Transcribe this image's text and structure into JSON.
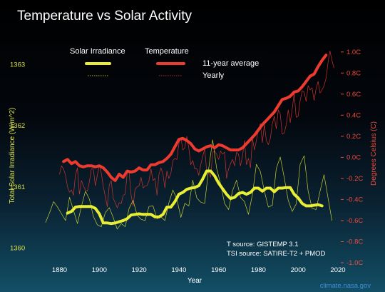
{
  "chart_data": {
    "type": "line",
    "title": "Temperature vs Solar Activity",
    "xlabel": "Year",
    "ylabel_left": "Total Solar Irradiance (W/m^2)",
    "ylabel_right": "Degrees Celsius (C)",
    "xlim": [
      1873,
      2020
    ],
    "x_ticks": [
      1880,
      1900,
      1920,
      1940,
      1960,
      1980,
      2000,
      2020
    ],
    "y_left_lim": [
      1359.76,
      1363.38
    ],
    "y_left_ticks": [
      1360,
      1361,
      1362,
      1363
    ],
    "y_right_lim": [
      -1.0,
      1.1
    ],
    "y_right_ticks": [
      -1.0,
      -0.8,
      -0.6,
      -0.4,
      -0.2,
      0.0,
      0.2,
      0.4,
      0.6,
      0.8,
      1.0
    ],
    "y_right_tick_labels": [
      "-1.0C",
      "-0.8C",
      "-0.6C",
      "-0.4C",
      "-0.2C",
      "0.0C",
      "0.2C",
      "0.4C",
      "0.6C",
      "0.8C",
      "1.0C"
    ],
    "legend": {
      "placement": "top-left",
      "column_headers": [
        "Solar Irradiance",
        "Temperature"
      ],
      "row_labels": [
        "11-year average",
        "Yearly"
      ]
    },
    "annotations": [
      "T source: GISTEMP 3.1",
      "TSI source: SATIRE-T2 + PMOD"
    ],
    "credit": "climate.nasa.gov",
    "colors": {
      "solar": "#e8ee34",
      "temperature": "#ee3b30",
      "left_axis_text": "#d9e04a",
      "right_axis_text": "#ee4a3a"
    },
    "series": [
      {
        "axis": "right",
        "color": "#ee3b30",
        "kind": "11-year average",
        "x": [
          1882,
          1884,
          1886,
          1888,
          1890,
          1892,
          1894,
          1896,
          1898,
          1900,
          1902,
          1904,
          1906,
          1908,
          1910,
          1912,
          1914,
          1916,
          1918,
          1920,
          1922,
          1924,
          1926,
          1928,
          1930,
          1932,
          1934,
          1936,
          1938,
          1940,
          1942,
          1944,
          1946,
          1948,
          1950,
          1952,
          1954,
          1956,
          1958,
          1960,
          1962,
          1964,
          1966,
          1968,
          1970,
          1972,
          1974,
          1976,
          1978,
          1980,
          1982,
          1984,
          1986,
          1988,
          1990,
          1992,
          1994,
          1996,
          1998,
          2000,
          2002,
          2004,
          2006,
          2008,
          2010,
          2012,
          2014
        ],
        "y": [
          -0.04,
          -0.02,
          -0.06,
          -0.04,
          -0.08,
          -0.09,
          -0.08,
          -0.08,
          -0.09,
          -0.08,
          -0.1,
          -0.14,
          -0.19,
          -0.22,
          -0.16,
          -0.19,
          -0.13,
          -0.14,
          -0.13,
          -0.1,
          -0.12,
          -0.12,
          -0.07,
          -0.07,
          -0.05,
          -0.04,
          -0.01,
          0.03,
          0.1,
          0.17,
          0.18,
          0.16,
          0.13,
          0.08,
          0.06,
          0.08,
          0.1,
          0.11,
          0.09,
          0.12,
          0.11,
          0.09,
          0.07,
          0.07,
          0.07,
          0.09,
          0.13,
          0.17,
          0.21,
          0.26,
          0.31,
          0.35,
          0.39,
          0.43,
          0.49,
          0.55,
          0.56,
          0.58,
          0.62,
          0.63,
          0.67,
          0.72,
          0.77,
          0.79,
          0.86,
          0.92,
          0.97
        ]
      },
      {
        "axis": "right",
        "color": "#ee3b30",
        "kind": "Yearly",
        "x": [
          1880,
          1881,
          1882,
          1883,
          1884,
          1885,
          1886,
          1887,
          1888,
          1889,
          1890,
          1891,
          1892,
          1893,
          1894,
          1895,
          1896,
          1897,
          1898,
          1899,
          1900,
          1901,
          1902,
          1903,
          1904,
          1905,
          1906,
          1907,
          1908,
          1909,
          1910,
          1911,
          1912,
          1913,
          1914,
          1915,
          1916,
          1917,
          1918,
          1919,
          1920,
          1921,
          1922,
          1923,
          1924,
          1925,
          1926,
          1927,
          1928,
          1929,
          1930,
          1931,
          1932,
          1933,
          1934,
          1935,
          1936,
          1937,
          1938,
          1939,
          1940,
          1941,
          1942,
          1943,
          1944,
          1945,
          1946,
          1947,
          1948,
          1949,
          1950,
          1951,
          1952,
          1953,
          1954,
          1955,
          1956,
          1957,
          1958,
          1959,
          1960,
          1961,
          1962,
          1963,
          1964,
          1965,
          1966,
          1967,
          1968,
          1969,
          1970,
          1971,
          1972,
          1973,
          1974,
          1975,
          1976,
          1977,
          1978,
          1979,
          1980,
          1981,
          1982,
          1983,
          1984,
          1985,
          1986,
          1987,
          1988,
          1989,
          1990,
          1991,
          1992,
          1993,
          1994,
          1995,
          1996,
          1997,
          1998,
          1999,
          2000,
          2001,
          2002,
          2003,
          2004,
          2005,
          2006,
          2007,
          2008,
          2009,
          2010,
          2011,
          2012,
          2013,
          2014,
          2015,
          2016,
          2017,
          2018
        ],
        "y": [
          -0.16,
          -0.08,
          -0.11,
          -0.17,
          -0.28,
          -0.33,
          -0.31,
          -0.36,
          -0.17,
          -0.1,
          -0.35,
          -0.22,
          -0.27,
          -0.31,
          -0.32,
          -0.23,
          -0.11,
          -0.11,
          -0.27,
          -0.17,
          -0.08,
          -0.15,
          -0.28,
          -0.37,
          -0.47,
          -0.26,
          -0.22,
          -0.39,
          -0.43,
          -0.48,
          -0.43,
          -0.44,
          -0.36,
          -0.35,
          -0.15,
          -0.14,
          -0.36,
          -0.46,
          -0.3,
          -0.28,
          -0.27,
          -0.19,
          -0.29,
          -0.27,
          -0.27,
          -0.22,
          -0.11,
          -0.22,
          -0.2,
          -0.36,
          -0.16,
          -0.1,
          -0.16,
          -0.29,
          -0.13,
          -0.2,
          -0.15,
          -0.03,
          -0.01,
          -0.02,
          0.13,
          0.19,
          0.07,
          0.09,
          0.2,
          0.09,
          -0.07,
          -0.03,
          -0.11,
          -0.11,
          -0.17,
          -0.07,
          0.01,
          0.08,
          -0.13,
          -0.14,
          -0.19,
          0.05,
          0.06,
          0.03,
          -0.02,
          0.06,
          0.03,
          0.05,
          -0.2,
          -0.11,
          -0.06,
          -0.02,
          -0.08,
          0.05,
          0.03,
          -0.08,
          0.01,
          0.16,
          -0.07,
          -0.01,
          -0.1,
          0.18,
          0.07,
          0.16,
          0.26,
          0.32,
          0.14,
          0.31,
          0.16,
          0.12,
          0.18,
          0.32,
          0.39,
          0.27,
          0.45,
          0.41,
          0.22,
          0.23,
          0.31,
          0.45,
          0.33,
          0.46,
          0.61,
          0.38,
          0.39,
          0.54,
          0.63,
          0.62,
          0.53,
          0.68,
          0.64,
          0.66,
          0.54,
          0.65,
          0.72,
          0.61,
          0.64,
          0.68,
          0.75,
          0.9,
          1.01,
          0.92,
          0.85
        ]
      },
      {
        "axis": "left",
        "color": "#e8ee34",
        "kind": "11-year average",
        "x": [
          1884,
          1886,
          1888,
          1890,
          1892,
          1894,
          1896,
          1898,
          1900,
          1902,
          1904,
          1906,
          1908,
          1910,
          1912,
          1914,
          1916,
          1918,
          1920,
          1922,
          1924,
          1926,
          1928,
          1930,
          1932,
          1934,
          1936,
          1938,
          1940,
          1942,
          1944,
          1946,
          1948,
          1950,
          1952,
          1954,
          1956,
          1958,
          1960,
          1962,
          1964,
          1966,
          1968,
          1970,
          1972,
          1974,
          1976,
          1978,
          1980,
          1982,
          1984,
          1986,
          1988,
          1990,
          1992,
          1994,
          1996,
          1998,
          2000,
          2002,
          2004,
          2006,
          2008,
          2010,
          2012
        ],
        "y": [
          1360.57,
          1360.6,
          1360.67,
          1360.68,
          1360.68,
          1360.68,
          1360.68,
          1360.65,
          1360.56,
          1360.41,
          1360.41,
          1360.4,
          1360.41,
          1360.43,
          1360.45,
          1360.48,
          1360.54,
          1360.55,
          1360.56,
          1360.55,
          1360.55,
          1360.55,
          1360.51,
          1360.51,
          1360.55,
          1360.67,
          1360.67,
          1360.76,
          1360.88,
          1360.91,
          1360.96,
          1360.98,
          1360.99,
          1361.02,
          1361.13,
          1361.26,
          1361.26,
          1361.18,
          1361.06,
          1360.97,
          1360.88,
          1360.81,
          1360.83,
          1360.89,
          1360.91,
          1360.88,
          1360.91,
          1360.98,
          1360.98,
          1360.93,
          1360.98,
          1360.98,
          1360.92,
          1360.98,
          1360.98,
          1360.99,
          1360.99,
          1360.88,
          1360.82,
          1360.73,
          1360.69,
          1360.69,
          1360.7,
          1360.71,
          1360.69
        ]
      },
      {
        "axis": "left",
        "color": "#e8ee34",
        "kind": "Yearly",
        "x": [
          1873,
          1875,
          1877,
          1879,
          1881,
          1883,
          1885,
          1887,
          1889,
          1891,
          1893,
          1895,
          1897,
          1899,
          1901,
          1903,
          1905,
          1907,
          1909,
          1911,
          1913,
          1915,
          1917,
          1919,
          1921,
          1923,
          1925,
          1927,
          1929,
          1931,
          1933,
          1935,
          1937,
          1939,
          1941,
          1943,
          1945,
          1947,
          1949,
          1951,
          1953,
          1955,
          1957,
          1959,
          1961,
          1963,
          1965,
          1967,
          1969,
          1971,
          1973,
          1975,
          1977,
          1979,
          1981,
          1983,
          1985,
          1987,
          1989,
          1991,
          1993,
          1995,
          1997,
          1999,
          2001,
          2003,
          2005,
          2007,
          2009,
          2011,
          2013,
          2015,
          2017
        ],
        "y": [
          1360.42,
          1360.58,
          1360.76,
          1360.67,
          1360.56,
          1360.45,
          1360.83,
          1360.62,
          1360.4,
          1360.68,
          1360.93,
          1360.8,
          1360.52,
          1360.38,
          1360.35,
          1360.58,
          1360.66,
          1360.5,
          1360.31,
          1360.4,
          1360.35,
          1360.65,
          1360.78,
          1360.54,
          1360.47,
          1360.45,
          1360.68,
          1360.69,
          1360.48,
          1360.51,
          1360.45,
          1360.74,
          1360.95,
          1360.8,
          1360.5,
          1360.73,
          1360.69,
          1361.11,
          1360.82,
          1360.75,
          1360.73,
          1361.3,
          1361.77,
          1361.3,
          1361.05,
          1360.73,
          1360.63,
          1360.94,
          1361.11,
          1360.83,
          1360.76,
          1360.55,
          1360.88,
          1361.37,
          1361.25,
          1360.93,
          1360.67,
          1360.7,
          1361.3,
          1361.49,
          1361.15,
          1360.78,
          1360.6,
          1360.72,
          1361.37,
          1361.51,
          1360.93,
          1360.65,
          1360.63,
          1360.93,
          1361.2,
          1360.82,
          1360.45
        ]
      }
    ]
  }
}
